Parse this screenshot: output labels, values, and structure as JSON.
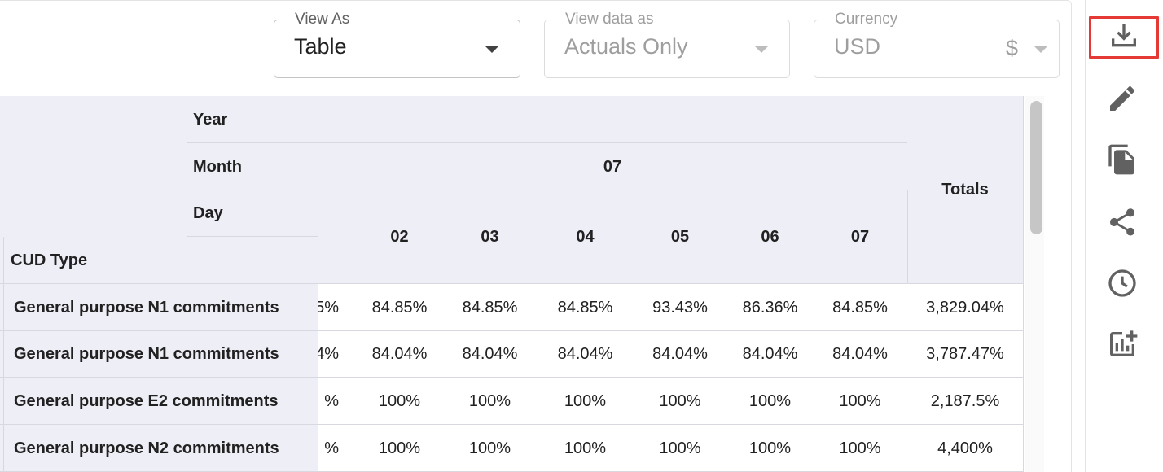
{
  "controls": {
    "view_as": {
      "label": "View As",
      "value": "Table"
    },
    "view_data_as": {
      "label": "View data as",
      "value": "Actuals Only"
    },
    "currency": {
      "label": "Currency",
      "value": "USD",
      "symbol": "$"
    }
  },
  "table": {
    "header_labels": {
      "year": "Year",
      "month": "Month",
      "day": "Day",
      "row_dim": "CUD Type"
    },
    "month_value": "07",
    "days": [
      "02",
      "03",
      "04",
      "05",
      "06",
      "07"
    ],
    "totals_label": "Totals",
    "rows": [
      {
        "label": "General purpose N1 commitments",
        "partial": "5%",
        "values": [
          "84.85%",
          "84.85%",
          "84.85%",
          "93.43%",
          "86.36%",
          "84.85%"
        ],
        "total": "3,829.04%"
      },
      {
        "label": "General purpose N1 commitments",
        "partial": "4%",
        "values": [
          "84.04%",
          "84.04%",
          "84.04%",
          "84.04%",
          "84.04%",
          "84.04%"
        ],
        "total": "3,787.47%"
      },
      {
        "label": "General purpose E2 commitments",
        "partial": "%",
        "values": [
          "100%",
          "100%",
          "100%",
          "100%",
          "100%",
          "100%"
        ],
        "total": "2,187.5%"
      },
      {
        "label": "General purpose N2 commitments",
        "partial": "%",
        "values": [
          "100%",
          "100%",
          "100%",
          "100%",
          "100%",
          "100%"
        ],
        "total": "4,400%"
      }
    ]
  },
  "toolbar": {
    "icons": [
      "download-icon",
      "edit-pencil-icon",
      "copy-icon",
      "share-icon",
      "history-clock-icon",
      "add-chart-icon"
    ],
    "highlight_color": "#e53935"
  },
  "colors": {
    "header_bg": "#eeeef6",
    "grid_line": "#d8d8e0"
  }
}
